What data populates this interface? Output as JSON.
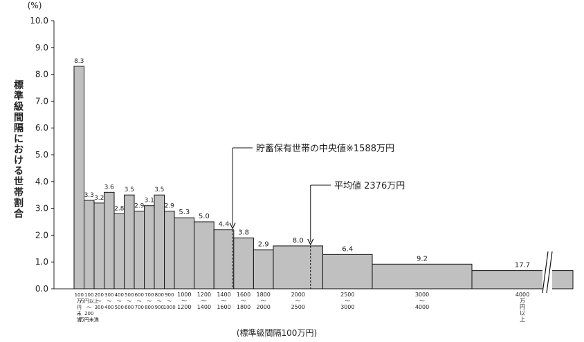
{
  "chart_data": {
    "type": "bar",
    "unit_label": "(%)",
    "ylabel": "標準級間隔における世帯割合",
    "xlabel": "(標準級間隔100万円)",
    "ylim": [
      0,
      10
    ],
    "yticks": [
      "0.0",
      "1.0",
      "2.0",
      "3.0",
      "4.0",
      "5.0",
      "6.0",
      "7.0",
      "8.0",
      "9.0",
      "10.0"
    ],
    "bins": [
      {
        "from": 0,
        "to": 100,
        "value": 8.3,
        "label": "8.3",
        "lines": [
          "100",
          "万",
          "円",
          "未",
          "満"
        ]
      },
      {
        "from": 100,
        "to": 200,
        "value": 3.3,
        "label": "3.3",
        "lines": [
          "100",
          "万円以上",
          "〜",
          "200",
          "万円未満"
        ]
      },
      {
        "from": 200,
        "to": 300,
        "value": 3.2,
        "label": "3.2",
        "lines": [
          "200",
          "〜",
          "300"
        ]
      },
      {
        "from": 300,
        "to": 400,
        "value": 3.6,
        "label": "3.6",
        "lines": [
          "300",
          "〜",
          "400"
        ]
      },
      {
        "from": 400,
        "to": 500,
        "value": 2.8,
        "label": "2.8",
        "lines": [
          "400",
          "〜",
          "500"
        ]
      },
      {
        "from": 500,
        "to": 600,
        "value": 3.5,
        "label": "3.5",
        "lines": [
          "500",
          "〜",
          "600"
        ]
      },
      {
        "from": 600,
        "to": 700,
        "value": 2.9,
        "label": "2.9",
        "lines": [
          "600",
          "〜",
          "700"
        ]
      },
      {
        "from": 700,
        "to": 800,
        "value": 3.1,
        "label": "3.1",
        "lines": [
          "700",
          "〜",
          "800"
        ]
      },
      {
        "from": 800,
        "to": 900,
        "value": 3.5,
        "label": "3.5",
        "lines": [
          "800",
          "〜",
          "900"
        ]
      },
      {
        "from": 900,
        "to": 1000,
        "value": 2.9,
        "label": "2.9",
        "lines": [
          "900",
          "〜",
          "1000"
        ]
      },
      {
        "from": 1000,
        "to": 1200,
        "value": 2.65,
        "label": "5.3",
        "lines": [
          "1000",
          "〜",
          "1200"
        ]
      },
      {
        "from": 1200,
        "to": 1400,
        "value": 2.5,
        "label": "5.0",
        "lines": [
          "1200",
          "〜",
          "1400"
        ]
      },
      {
        "from": 1400,
        "to": 1600,
        "value": 2.2,
        "label": "4.4",
        "lines": [
          "1400",
          "〜",
          "1600"
        ]
      },
      {
        "from": 1600,
        "to": 1800,
        "value": 1.9,
        "label": "3.8",
        "lines": [
          "1600",
          "〜",
          "1800"
        ]
      },
      {
        "from": 1800,
        "to": 2000,
        "value": 1.45,
        "label": "2.9",
        "lines": [
          "1800",
          "〜",
          "2000"
        ]
      },
      {
        "from": 2000,
        "to": 2500,
        "value": 1.6,
        "label": "8.0",
        "lines": [
          "2000",
          "〜",
          "2500"
        ]
      },
      {
        "from": 2500,
        "to": 3000,
        "value": 1.28,
        "label": "6.4",
        "lines": [
          "2500",
          "〜",
          "3000"
        ]
      },
      {
        "from": 3000,
        "to": 4000,
        "value": 0.92,
        "label": "9.2",
        "lines": [
          "3000",
          "〜",
          "4000"
        ]
      },
      {
        "from": 4000,
        "to": null,
        "value": 0.68,
        "label": "17.7",
        "lines": [
          "4000",
          "万",
          "円",
          "以",
          "上"
        ]
      }
    ],
    "annotations": [
      {
        "text": "貯蓄保有世帯の中央値※1588万円",
        "x": 1588,
        "y": 2.2
      },
      {
        "text": "平均値 2376万円",
        "x": 2376,
        "y": 1.6
      }
    ]
  }
}
